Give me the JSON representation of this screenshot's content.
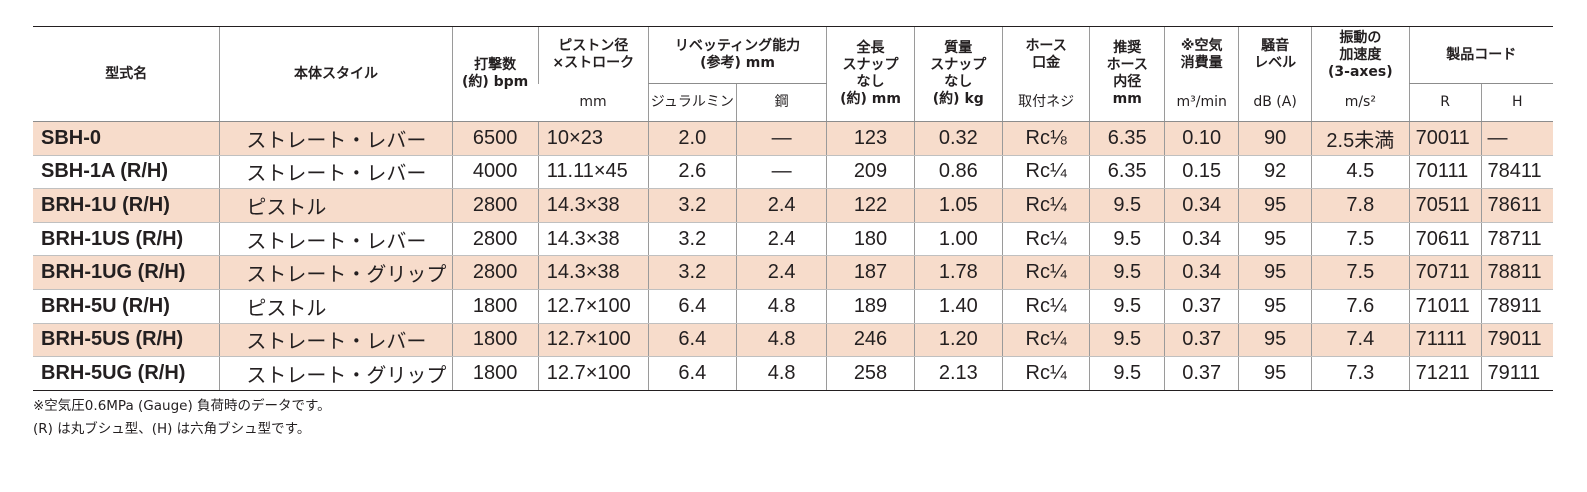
{
  "headers": {
    "model": "型式名",
    "style": "本体スタイル",
    "blows": "打撃数\n(約) bpm",
    "piston": "ピストン径\n×ストローク",
    "piston_unit": "mm",
    "rivet": "リベッティング能力\n(参考) mm",
    "rivet_duralumin": "ジュラルミン",
    "rivet_steel": "鋼",
    "length": "全長\nスナップ\nなし\n(約) mm",
    "mass": "質量\nスナップ\nなし\n(約) kg",
    "hose_fitting": "ホース\n口金",
    "hose_fitting_sub": "取付ネジ",
    "hose_bore": "推奨\nホース\n内径\nmm",
    "air": "※空気\n消費量",
    "air_unit": "m³/min",
    "noise": "騒音\nレベル",
    "noise_unit": "dB (A)",
    "vibration": "振動の\n加速度\n(3-axes)",
    "vibration_unit": "m/s²",
    "product_code": "製品コード",
    "code_r": "R",
    "code_h": "H"
  },
  "rows": [
    {
      "model": "SBH-0",
      "style": "ストレート・レバー",
      "blows": "6500",
      "piston": "10×23",
      "duralumin": "2.0",
      "steel": "—",
      "length": "123",
      "mass": "0.32",
      "fitting": "Rc⅛",
      "hose": "6.35",
      "air": "0.10",
      "noise": "90",
      "vibration": "2.5未満",
      "code_r": "70011",
      "code_h": "—"
    },
    {
      "model": "SBH-1A (R/H)",
      "style": "ストレート・レバー",
      "blows": "4000",
      "piston": "11.11×45",
      "duralumin": "2.6",
      "steel": "—",
      "length": "209",
      "mass": "0.86",
      "fitting": "Rc¼",
      "hose": "6.35",
      "air": "0.15",
      "noise": "92",
      "vibration": "4.5",
      "code_r": "70111",
      "code_h": "78411"
    },
    {
      "model": "BRH-1U (R/H)",
      "style": "ピストル",
      "blows": "2800",
      "piston": "14.3×38",
      "duralumin": "3.2",
      "steel": "2.4",
      "length": "122",
      "mass": "1.05",
      "fitting": "Rc¼",
      "hose": "9.5",
      "air": "0.34",
      "noise": "95",
      "vibration": "7.8",
      "code_r": "70511",
      "code_h": "78611"
    },
    {
      "model": "BRH-1US (R/H)",
      "style": "ストレート・レバー",
      "blows": "2800",
      "piston": "14.3×38",
      "duralumin": "3.2",
      "steel": "2.4",
      "length": "180",
      "mass": "1.00",
      "fitting": "Rc¼",
      "hose": "9.5",
      "air": "0.34",
      "noise": "95",
      "vibration": "7.5",
      "code_r": "70611",
      "code_h": "78711"
    },
    {
      "model": "BRH-1UG (R/H)",
      "style": "ストレート・グリップ",
      "blows": "2800",
      "piston": "14.3×38",
      "duralumin": "3.2",
      "steel": "2.4",
      "length": "187",
      "mass": "1.78",
      "fitting": "Rc¼",
      "hose": "9.5",
      "air": "0.34",
      "noise": "95",
      "vibration": "7.5",
      "code_r": "70711",
      "code_h": "78811"
    },
    {
      "model": "BRH-5U (R/H)",
      "style": "ピストル",
      "blows": "1800",
      "piston": "12.7×100",
      "duralumin": "6.4",
      "steel": "4.8",
      "length": "189",
      "mass": "1.40",
      "fitting": "Rc¼",
      "hose": "9.5",
      "air": "0.37",
      "noise": "95",
      "vibration": "7.6",
      "code_r": "71011",
      "code_h": "78911"
    },
    {
      "model": "BRH-5US (R/H)",
      "style": "ストレート・レバー",
      "blows": "1800",
      "piston": "12.7×100",
      "duralumin": "6.4",
      "steel": "4.8",
      "length": "246",
      "mass": "1.20",
      "fitting": "Rc¼",
      "hose": "9.5",
      "air": "0.37",
      "noise": "95",
      "vibration": "7.4",
      "code_r": "71111",
      "code_h": "79011"
    },
    {
      "model": "BRH-5UG (R/H)",
      "style": "ストレート・グリップ",
      "blows": "1800",
      "piston": "12.7×100",
      "duralumin": "6.4",
      "steel": "4.8",
      "length": "258",
      "mass": "2.13",
      "fitting": "Rc¼",
      "hose": "9.5",
      "air": "0.37",
      "noise": "95",
      "vibration": "7.3",
      "code_r": "71211",
      "code_h": "79111"
    }
  ],
  "notes": [
    "※空気圧0.6MPa (Gauge) 負荷時のデータです。",
    "(R) は丸ブシュ型、(H) は六角ブシュ型です。"
  ]
}
